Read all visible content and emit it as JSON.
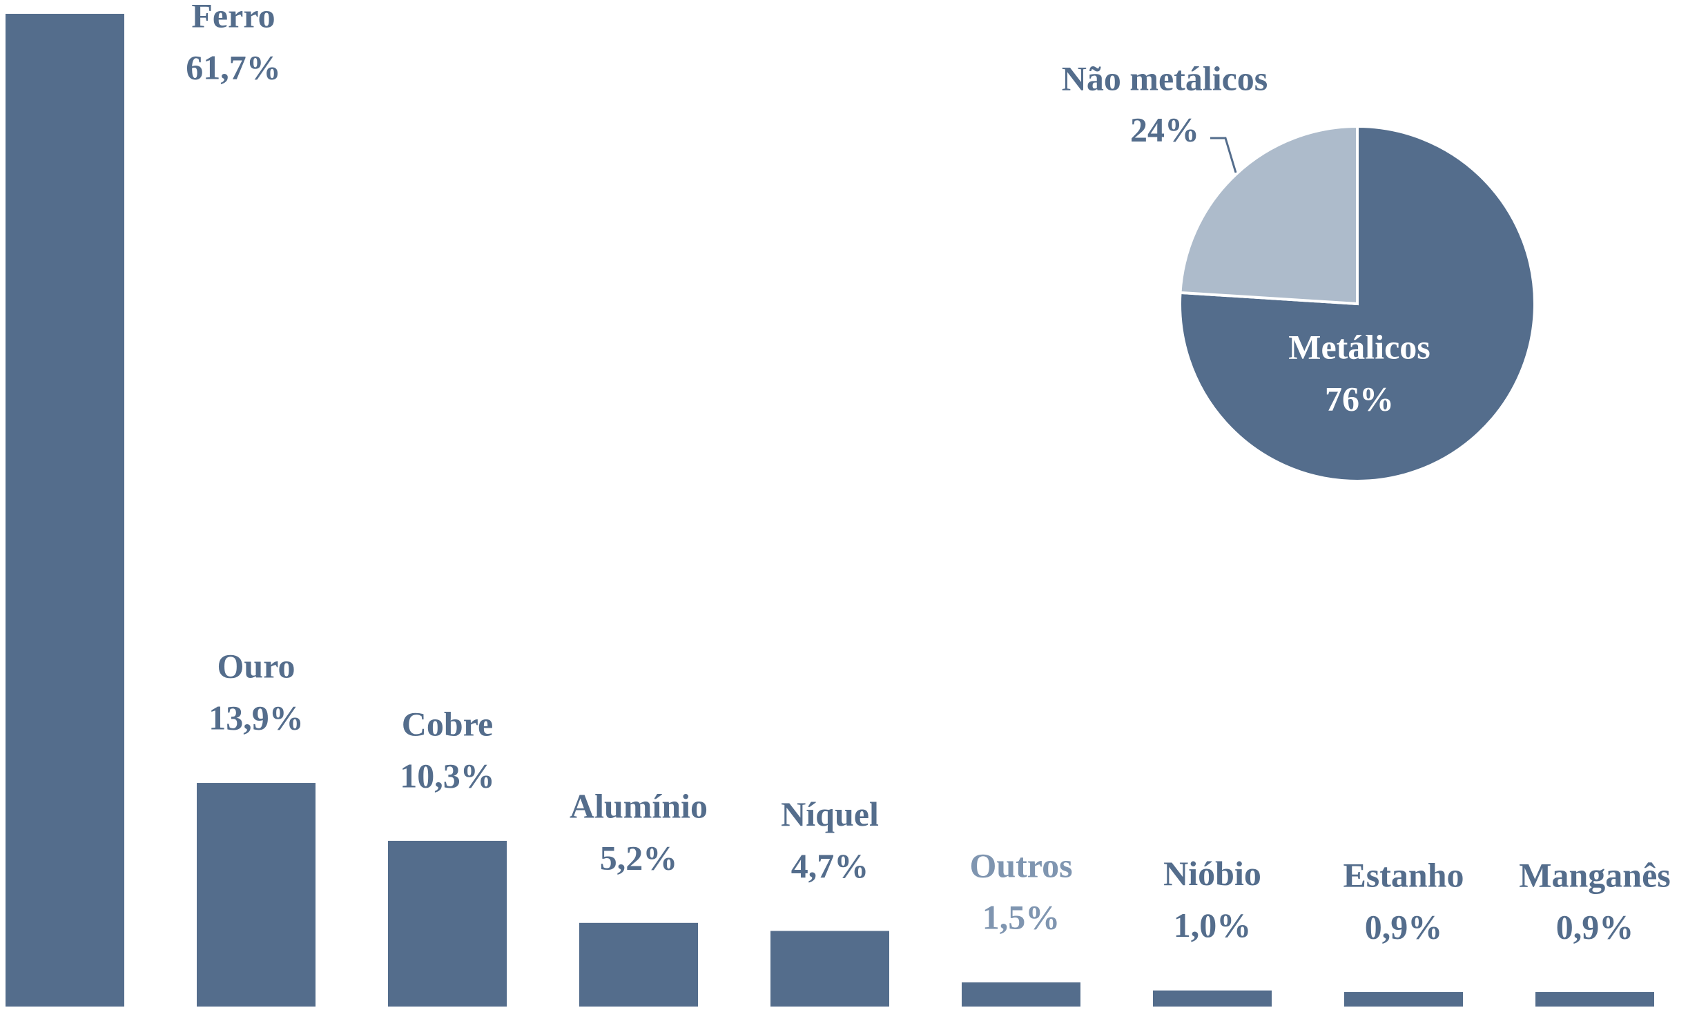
{
  "chart_data": [
    {
      "type": "bar",
      "categories": [
        "Ferro",
        "Ouro",
        "Cobre",
        "Alumínio",
        "Níquel",
        "Outros",
        "Nióbio",
        "Estanho",
        "Manganês"
      ],
      "values": [
        61.7,
        13.9,
        10.3,
        5.2,
        4.7,
        1.5,
        1.0,
        0.9,
        0.9
      ],
      "value_labels": [
        "61,7%",
        "13,9%",
        "10,3%",
        "5,2%",
        "4,7%",
        "1,5%",
        "1,0%",
        "0,9%",
        "0,9%"
      ],
      "color": "#546d8c",
      "label_colors": [
        "#546d8c",
        "#546d8c",
        "#546d8c",
        "#546d8c",
        "#546d8c",
        "#7f95b0",
        "#546d8c",
        "#546d8c",
        "#546d8c"
      ]
    },
    {
      "type": "pie",
      "categories": [
        "Metálicos",
        "Não metálicos"
      ],
      "values": [
        76,
        24
      ],
      "value_labels": [
        "76%",
        "24%"
      ],
      "colors": [
        "#546d8c",
        "#adbbcb"
      ]
    }
  ]
}
